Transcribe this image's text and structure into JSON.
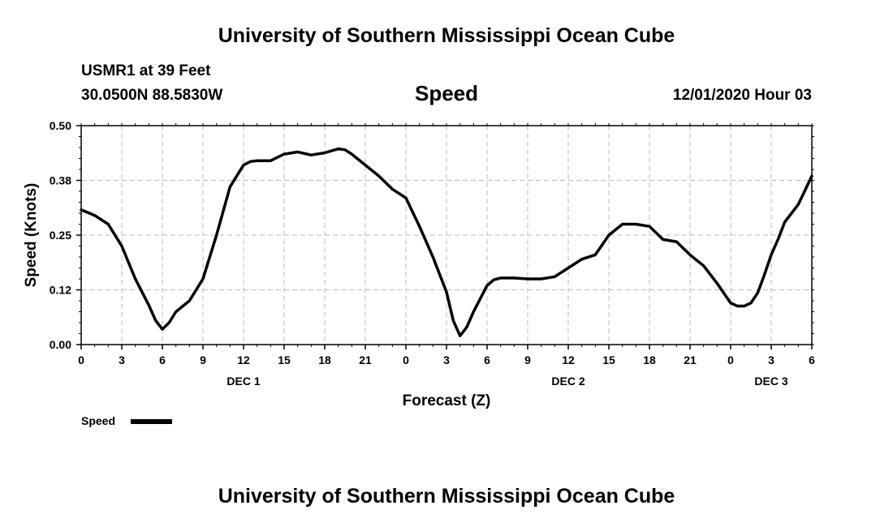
{
  "header": {
    "title": "University of Southern Mississippi Ocean Cube",
    "station": "USMR1 at 39 Feet",
    "coords": "30.0500N 88.5830W",
    "variable": "Speed",
    "datetime": "12/01/2020 Hour 03"
  },
  "footer": {
    "title": "University of Southern Mississippi Ocean Cube"
  },
  "colors": {
    "line": "#000000",
    "grid": "#bbbbbb",
    "background": "#ffffff"
  },
  "chart_data": {
    "type": "line",
    "title": "Speed",
    "xlabel": "Forecast (Z)",
    "ylabel": "Speed (Knots)",
    "ylim": [
      0,
      0.5
    ],
    "xlim": [
      0,
      54
    ],
    "yticks": [
      {
        "value": 0.0,
        "label": "0.00"
      },
      {
        "value": 0.125,
        "label": "0.12"
      },
      {
        "value": 0.25,
        "label": "0.25"
      },
      {
        "value": 0.375,
        "label": "0.38"
      },
      {
        "value": 0.5,
        "label": "0.50"
      }
    ],
    "xticks": [
      {
        "value": 0,
        "label": "0"
      },
      {
        "value": 3,
        "label": "3"
      },
      {
        "value": 6,
        "label": "6"
      },
      {
        "value": 9,
        "label": "9"
      },
      {
        "value": 12,
        "label": "12"
      },
      {
        "value": 15,
        "label": "15"
      },
      {
        "value": 18,
        "label": "18"
      },
      {
        "value": 21,
        "label": "21"
      },
      {
        "value": 24,
        "label": "0"
      },
      {
        "value": 27,
        "label": "3"
      },
      {
        "value": 30,
        "label": "6"
      },
      {
        "value": 33,
        "label": "9"
      },
      {
        "value": 36,
        "label": "12"
      },
      {
        "value": 39,
        "label": "15"
      },
      {
        "value": 42,
        "label": "18"
      },
      {
        "value": 45,
        "label": "21"
      },
      {
        "value": 48,
        "label": "0"
      },
      {
        "value": 51,
        "label": "3"
      },
      {
        "value": 54,
        "label": "6"
      }
    ],
    "date_labels": [
      {
        "value": 12,
        "label": "DEC 1"
      },
      {
        "value": 36,
        "label": "DEC 2"
      },
      {
        "value": 51,
        "label": "DEC 3"
      }
    ],
    "grid": true,
    "legend": "bottom-left",
    "series": [
      {
        "name": "Speed",
        "x": [
          0,
          1,
          2,
          3,
          4,
          5,
          5.5,
          6,
          6.5,
          7,
          8,
          9,
          10,
          11,
          12,
          12.5,
          13,
          14,
          15,
          16,
          17,
          18,
          19,
          19.5,
          20,
          21,
          22,
          23,
          23.5,
          24,
          25,
          26,
          27,
          27.5,
          28,
          28.5,
          29,
          30,
          30.5,
          31,
          32,
          33,
          34,
          35,
          36,
          37,
          38,
          39,
          40,
          41,
          42,
          43,
          44,
          45,
          46,
          47,
          48,
          48.5,
          49,
          49.5,
          50,
          50.5,
          51,
          51.5,
          52,
          53,
          54
        ],
        "values": [
          0.308,
          0.295,
          0.275,
          0.225,
          0.15,
          0.09,
          0.055,
          0.035,
          0.05,
          0.075,
          0.1,
          0.15,
          0.25,
          0.36,
          0.41,
          0.418,
          0.42,
          0.42,
          0.435,
          0.44,
          0.433,
          0.438,
          0.447,
          0.445,
          0.435,
          0.41,
          0.385,
          0.355,
          0.345,
          0.335,
          0.27,
          0.2,
          0.12,
          0.055,
          0.02,
          0.04,
          0.075,
          0.135,
          0.148,
          0.152,
          0.152,
          0.15,
          0.15,
          0.155,
          0.175,
          0.195,
          0.205,
          0.25,
          0.275,
          0.275,
          0.27,
          0.24,
          0.235,
          0.205,
          0.18,
          0.14,
          0.095,
          0.088,
          0.088,
          0.095,
          0.118,
          0.16,
          0.205,
          0.24,
          0.28,
          0.32,
          0.385
        ]
      }
    ]
  }
}
